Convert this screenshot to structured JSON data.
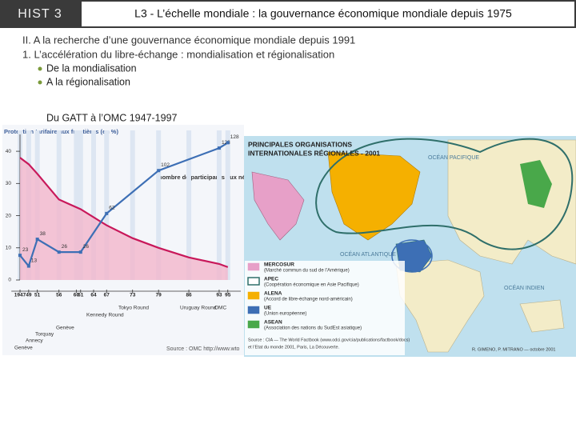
{
  "header": {
    "badge": "HIST 3",
    "title": "L3 - L’échelle mondiale : la gouvernance économique mondiale depuis 1975"
  },
  "outline": {
    "section": "II. A la recherche d’une gouvernance économique mondiale depuis 1991",
    "subsection": "1. L’accélération du libre-échange : mondialisation et régionalisation",
    "bullets": [
      "De la mondialisation",
      "A la régionalisation"
    ]
  },
  "figure_caption": "Du GATT à l’OMC 1947-1997",
  "chart_data": {
    "type": "line",
    "title": "Protection tarifaire aux frontières (en %)",
    "participants_label": "nombre de participants aux négociations",
    "source": "Source : OMC http://www.wto",
    "xlim": [
      1945,
      1998
    ],
    "xticks": [
      {
        "value": 1947,
        "label": "1947"
      },
      {
        "value": 1949,
        "label": "49"
      },
      {
        "value": 1951,
        "label": "51"
      },
      {
        "value": 1956,
        "label": "56"
      },
      {
        "value": 1960,
        "label": "60"
      },
      {
        "value": 1961,
        "label": "61"
      },
      {
        "value": 1964,
        "label": "64"
      },
      {
        "value": 1967,
        "label": "67"
      },
      {
        "value": 1973,
        "label": "73"
      },
      {
        "value": 1979,
        "label": "79"
      },
      {
        "value": 1986,
        "label": "86"
      },
      {
        "value": 1993,
        "label": "93"
      },
      {
        "value": 1995,
        "label": "95"
      }
    ],
    "ylim": [
      0,
      44
    ],
    "yticks": [
      0,
      10,
      20,
      30,
      40
    ],
    "y2lim": [
      0,
      132
    ],
    "rounds": [
      "Genève",
      "Annecy",
      "Torquay",
      "Genève",
      "Kennedy Round",
      "Tokyo Round",
      "Uruguay Round",
      "OMC"
    ],
    "series": [
      {
        "name": "Protection tarifaire",
        "color": "#c8185a",
        "area": "#f3b6cc",
        "x": [
          1947,
          1949,
          1951,
          1956,
          1961,
          1967,
          1973,
          1979,
          1986,
          1993,
          1995
        ],
        "values": [
          38,
          36,
          33,
          25,
          22,
          17,
          13,
          10,
          7,
          5,
          4
        ]
      },
      {
        "name": "Participants",
        "color": "#3d6fb5",
        "axis": "y2",
        "x": [
          1947,
          1949,
          1951,
          1956,
          1961,
          1967,
          1979,
          1993,
          1995
        ],
        "values": [
          23,
          13,
          38,
          26,
          26,
          62,
          102,
          123,
          128
        ]
      }
    ]
  },
  "map": {
    "title": [
      "PRINCIPALES ORGANISATIONS",
      "INTERNATIONALES RÉGIONALES - 2001"
    ],
    "oceans": [
      "OCÉAN PACIFIQUE",
      "OCÉAN ATLANTIQUE",
      "OCÉAN INDIEN"
    ],
    "legend": [
      {
        "name": "MERCOSUR",
        "description": "(Marché commun du sud de l’Amérique)",
        "color": "#e7a0c8"
      },
      {
        "name": "APEC",
        "description": "(Coopération économique en Asie Pacifique)",
        "color": "#2f6f6a"
      },
      {
        "name": "ALENA",
        "description": "(Accord de libre-échange nord-américain)",
        "color": "#f5b000"
      },
      {
        "name": "UE",
        "description": "(Union européenne)",
        "color": "#3d6fb5"
      },
      {
        "name": "ASEAN",
        "description": "(Association des nations du SudEst asiatique)",
        "color": "#49a84a"
      }
    ],
    "source": [
      "Source : CIA — The World Factbook (www.odci.gov/cia/publications/factbook/docs)",
      "et l’Etat du monde 2001, Paris, La Découverte."
    ],
    "credits": "R. GIMENO, P. MITRANO — octobre 2001"
  }
}
